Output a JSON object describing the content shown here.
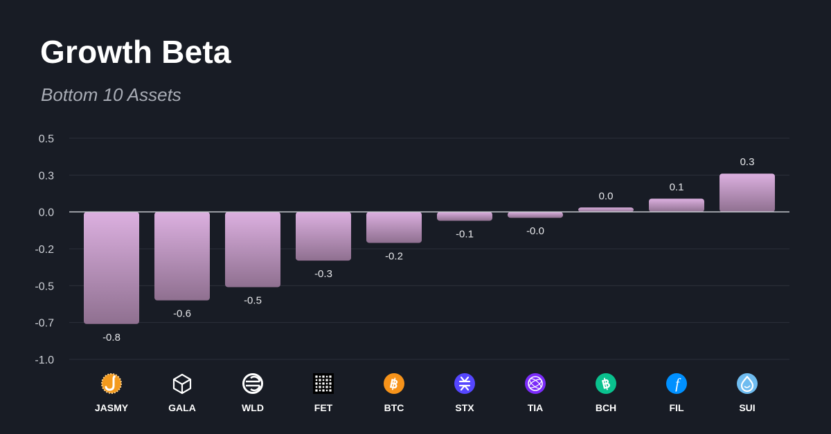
{
  "header": {
    "title": "Growth Beta",
    "subtitle": "Bottom 10 Assets"
  },
  "chart_data": {
    "type": "bar",
    "title": "Growth Beta",
    "subtitle": "Bottom 10 Assets",
    "xlabel": "",
    "ylabel": "",
    "ylim": [
      -1.0,
      0.5
    ],
    "yticks": [
      0.5,
      0.25,
      0.0,
      -0.25,
      -0.5,
      -0.75,
      -1.0
    ],
    "ytick_labels": [
      "0.5",
      "0.3",
      "0.0",
      "-0.2",
      "-0.5",
      "-0.7",
      "-1.0"
    ],
    "grid": true,
    "categories": [
      "JASMY",
      "GALA",
      "WLD",
      "FET",
      "BTC",
      "STX",
      "TIA",
      "BCH",
      "FIL",
      "SUI"
    ],
    "values": [
      -0.76,
      -0.6,
      -0.51,
      -0.33,
      -0.21,
      -0.06,
      -0.04,
      0.03,
      0.09,
      0.26
    ],
    "value_labels": [
      "-0.8",
      "-0.6",
      "-0.5",
      "-0.3",
      "-0.2",
      "-0.1",
      "-0.0",
      "0.0",
      "0.1",
      "0.3"
    ],
    "icons": [
      "jasmy-icon",
      "gala-icon",
      "wld-icon",
      "fet-icon",
      "btc-icon",
      "stx-icon",
      "tia-icon",
      "bch-icon",
      "fil-icon",
      "sui-icon"
    ],
    "colors": {
      "bar_top": "#dcb0e0",
      "bar_bottom": "#8f7090",
      "grid": "#2c313b",
      "zero_line": "#c5c8ce",
      "jasmy": "#f39a1e",
      "btc": "#f7931a",
      "stx": "#5546ff",
      "tia": "#7b2bf9",
      "bch": "#0ac18e",
      "fil": "#0090ff",
      "sui": "#6fbcf0"
    }
  }
}
